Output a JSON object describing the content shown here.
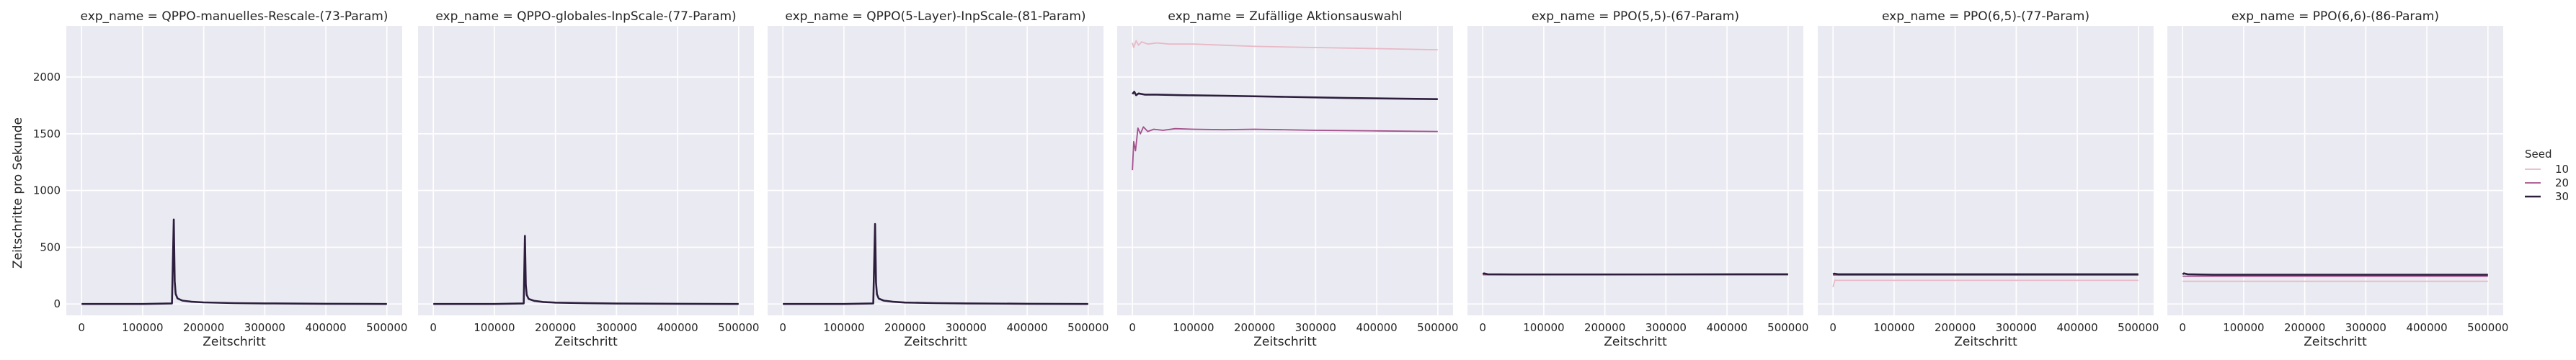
{
  "chart_data": {
    "type": "line",
    "facet_column": "exp_name",
    "xlabel": "Zeitschritt",
    "ylabel": "Zeitschritte pro Sekunde",
    "xlim": [
      -25000,
      525000
    ],
    "ylim": [
      -100,
      2450
    ],
    "xticks": [
      0,
      100000,
      200000,
      300000,
      400000,
      500000
    ],
    "xtick_labels": [
      "0",
      "100000",
      "200000",
      "300000",
      "400000",
      "500000"
    ],
    "yticks": [
      0,
      500,
      1000,
      1500,
      2000
    ],
    "ytick_labels": [
      "0",
      "500",
      "1000",
      "1500",
      "2000"
    ],
    "grid": true,
    "background": "#eaeaf2",
    "legend": {
      "title": "Seed",
      "placement": "right",
      "entries": [
        {
          "label": "10",
          "color": "#e8b9c5"
        },
        {
          "label": "20",
          "color": "#a4508c"
        },
        {
          "label": "30",
          "color": "#2d1e3e"
        }
      ]
    },
    "panels": [
      {
        "title": "exp_name = QPPO-manuelles-Rescale-(73-Param)",
        "series": [
          {
            "seed": "30",
            "color": "#2d1e3e",
            "x": [
              0,
              100000,
              148000,
              151000,
              152500,
              154000,
              157000,
              165000,
              180000,
              200000,
              250000,
              300000,
              400000,
              500000
            ],
            "y": [
              0,
              0,
              5,
              745,
              200,
              90,
              50,
              30,
              20,
              14,
              8,
              5,
              2,
              0
            ]
          }
        ]
      },
      {
        "title": "exp_name = QPPO-globales-InpScale-(77-Param)",
        "series": [
          {
            "seed": "30",
            "color": "#2d1e3e",
            "x": [
              0,
              100000,
              148000,
              150000,
              151500,
              153000,
              156000,
              165000,
              180000,
              200000,
              250000,
              300000,
              400000,
              500000
            ],
            "y": [
              0,
              0,
              5,
              600,
              170,
              80,
              45,
              28,
              18,
              12,
              7,
              4,
              2,
              0
            ]
          }
        ]
      },
      {
        "title": "exp_name = QPPO(5-Layer)-InpScale-(81-Param)",
        "series": [
          {
            "seed": "30",
            "color": "#2d1e3e",
            "x": [
              0,
              100000,
              148000,
              151000,
              152500,
              154000,
              157000,
              165000,
              180000,
              200000,
              250000,
              300000,
              400000,
              500000
            ],
            "y": [
              0,
              0,
              5,
              705,
              190,
              85,
              48,
              30,
              20,
              13,
              8,
              5,
              2,
              0
            ]
          }
        ]
      },
      {
        "title": "exp_name = Zufällige Aktionsauswahl",
        "series": [
          {
            "seed": "10",
            "color": "#e8b9c5",
            "x": [
              0,
              2000,
              6000,
              10000,
              15000,
              25000,
              40000,
              60000,
              100000,
              150000,
              200000,
              300000,
              400000,
              500000
            ],
            "y": [
              2300,
              2260,
              2320,
              2280,
              2310,
              2290,
              2300,
              2290,
              2290,
              2280,
              2270,
              2260,
              2250,
              2240
            ]
          },
          {
            "seed": "20",
            "color": "#a4508c",
            "x": [
              0,
              2000,
              5000,
              9000,
              13000,
              18000,
              25000,
              35000,
              50000,
              70000,
              100000,
              150000,
              200000,
              300000,
              400000,
              500000
            ],
            "y": [
              1180,
              1430,
              1350,
              1550,
              1500,
              1560,
              1520,
              1540,
              1530,
              1545,
              1540,
              1535,
              1540,
              1530,
              1525,
              1520
            ]
          },
          {
            "seed": "30",
            "color": "#2d1e3e",
            "x": [
              0,
              3000,
              6000,
              10000,
              20000,
              40000,
              80000,
              150000,
              250000,
              350000,
              500000
            ],
            "y": [
              1850,
              1870,
              1840,
              1855,
              1845,
              1845,
              1840,
              1835,
              1825,
              1815,
              1805
            ]
          }
        ]
      },
      {
        "title": "exp_name = PPO(5,5)-(67-Param)",
        "series": [
          {
            "seed": "10",
            "color": "#e8b9c5",
            "x": [
              0,
              500000
            ],
            "y": [
              262,
              262
            ]
          },
          {
            "seed": "20",
            "color": "#a4508c",
            "x": [
              0,
              500000
            ],
            "y": [
              258,
              258
            ]
          },
          {
            "seed": "30",
            "color": "#2d1e3e",
            "x": [
              0,
              2000,
              8000,
              50000,
              200000,
              500000
            ],
            "y": [
              265,
              270,
              262,
              260,
              260,
              262
            ]
          }
        ]
      },
      {
        "title": "exp_name = PPO(6,5)-(77-Param)",
        "series": [
          {
            "seed": "10",
            "color": "#e8b9c5",
            "x": [
              0,
              3000,
              6000,
              50000,
              500000
            ],
            "y": [
              150,
              210,
              208,
              208,
              208
            ]
          },
          {
            "seed": "20",
            "color": "#a4508c",
            "x": [
              0,
              500000
            ],
            "y": [
              255,
              255
            ]
          },
          {
            "seed": "30",
            "color": "#2d1e3e",
            "x": [
              0,
              2000,
              8000,
              50000,
              200000,
              500000
            ],
            "y": [
              262,
              268,
              262,
              262,
              262,
              262
            ]
          }
        ]
      },
      {
        "title": "exp_name = PPO(6,6)-(86-Param)",
        "series": [
          {
            "seed": "10",
            "color": "#e8b9c5",
            "x": [
              0,
              500000
            ],
            "y": [
              200,
              200
            ]
          },
          {
            "seed": "20",
            "color": "#a4508c",
            "x": [
              0,
              500000
            ],
            "y": [
              245,
              245
            ]
          },
          {
            "seed": "30",
            "color": "#2d1e3e",
            "x": [
              0,
              2000,
              8000,
              50000,
              200000,
              500000
            ],
            "y": [
              262,
              270,
              262,
              258,
              258,
              258
            ]
          }
        ]
      }
    ]
  }
}
